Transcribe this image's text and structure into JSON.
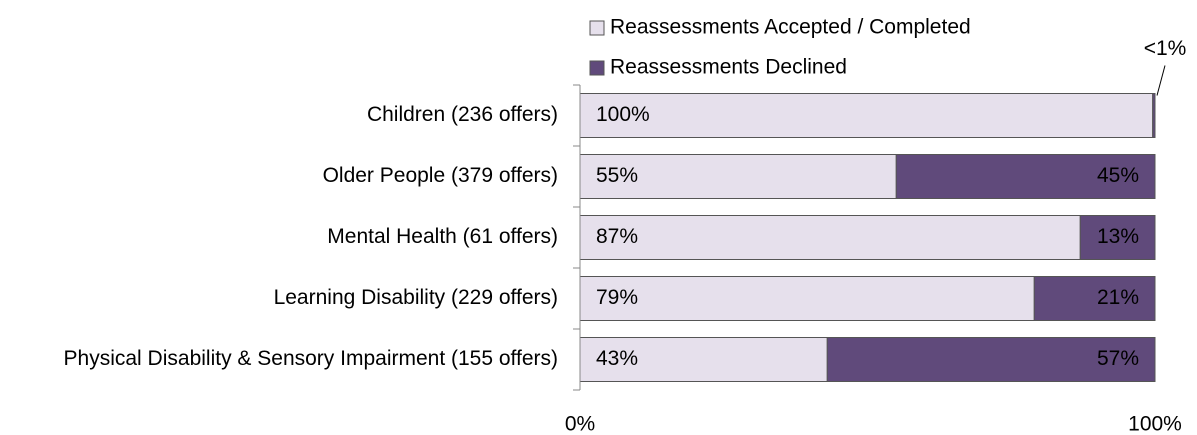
{
  "chart_data": {
    "type": "stacked_barh",
    "categories": [
      "Children (236 offers)",
      "Older People (379 offers)",
      "Mental Health (61 offers)",
      "Learning Disability (229 offers)",
      "Physical Disability & Sensory Impairment (155 offers)"
    ],
    "series": [
      {
        "name": "Reassessments Accepted / Completed",
        "color": "#e6e0ec",
        "values": [
          99.6,
          55,
          87,
          79,
          43
        ],
        "value_labels": [
          "100%",
          "55%",
          "87%",
          "79%",
          "43%"
        ]
      },
      {
        "name": "Reassessments Declined",
        "color": "#604a7b",
        "values": [
          0.4,
          45,
          13,
          21,
          57
        ],
        "value_labels": [
          "<1%",
          "45%",
          "13%",
          "21%",
          "57%"
        ]
      }
    ],
    "xlim": [
      0,
      100
    ],
    "xticks": [
      {
        "value": 0,
        "label": "0%"
      },
      {
        "value": 100,
        "label": "100%"
      }
    ],
    "legend": "top"
  }
}
